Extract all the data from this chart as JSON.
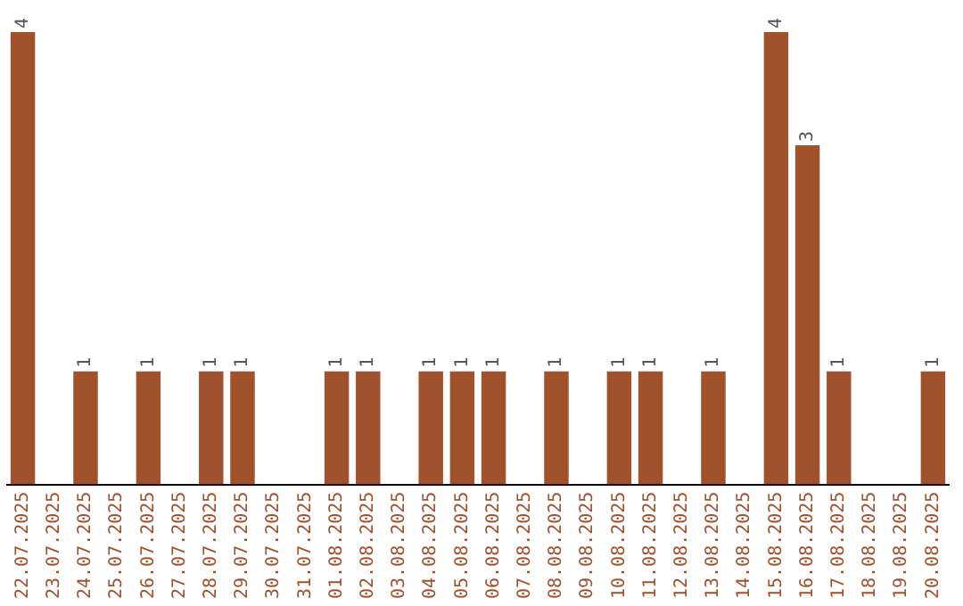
{
  "chart_data": {
    "type": "bar",
    "categories": [
      "22.07.2025",
      "23.07.2025",
      "24.07.2025",
      "25.07.2025",
      "26.07.2025",
      "27.07.2025",
      "28.07.2025",
      "29.07.2025",
      "30.07.2025",
      "31.07.2025",
      "01.08.2025",
      "02.08.2025",
      "03.08.2025",
      "04.08.2025",
      "05.08.2025",
      "06.08.2025",
      "07.08.2025",
      "08.08.2025",
      "09.08.2025",
      "10.08.2025",
      "11.08.2025",
      "12.08.2025",
      "13.08.2025",
      "14.08.2025",
      "15.08.2025",
      "16.08.2025",
      "17.08.2025",
      "18.08.2025",
      "19.08.2025",
      "20.08.2025"
    ],
    "values": [
      4,
      null,
      1,
      null,
      1,
      null,
      1,
      1,
      null,
      null,
      1,
      1,
      null,
      1,
      1,
      1,
      null,
      1,
      null,
      1,
      1,
      null,
      1,
      null,
      4,
      3,
      1,
      null,
      null,
      1
    ],
    "color": "#a0522d",
    "ylim": [
      0,
      4
    ],
    "data_labels": true,
    "grid": false,
    "legend": false
  }
}
